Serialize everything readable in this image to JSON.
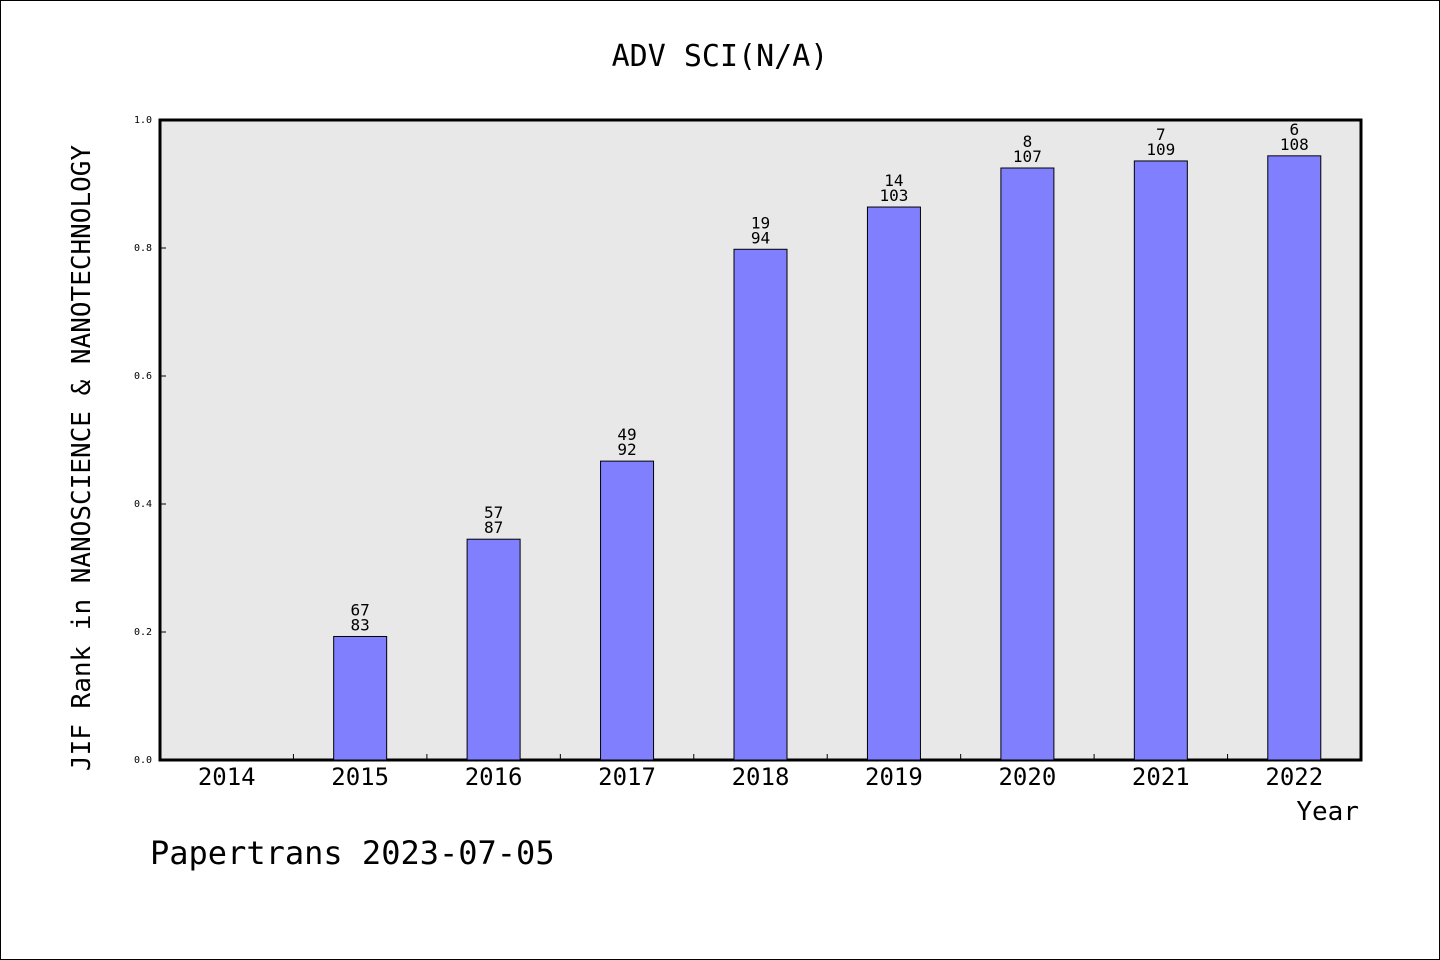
{
  "chart_data": {
    "type": "bar",
    "title": "ADV SCI(N/A)",
    "xlabel": "Year",
    "ylabel": "JIF Rank in NANOSCIENCE & NANOTECHNOLOGY",
    "ylim": [
      0,
      1.0
    ],
    "yticks": [
      "0.0",
      "0.2",
      "0.4",
      "0.6",
      "0.8",
      "1.0"
    ],
    "categories": [
      "2014",
      "2015",
      "2016",
      "2017",
      "2018",
      "2019",
      "2020",
      "2021",
      "2022"
    ],
    "values": [
      null,
      0.193,
      0.345,
      0.467,
      0.798,
      0.864,
      0.925,
      0.936,
      0.944
    ],
    "rank": [
      null,
      "67",
      "57",
      "49",
      "19",
      "14",
      "8",
      "7",
      "6"
    ],
    "total": [
      null,
      "83",
      "87",
      "92",
      "94",
      "103",
      "107",
      "109",
      "108"
    ],
    "bar_color": "#8080ff",
    "plot_background": "#e8e8e8",
    "grid": false
  },
  "footer": {
    "text": "Papertrans 2023-07-05"
  }
}
